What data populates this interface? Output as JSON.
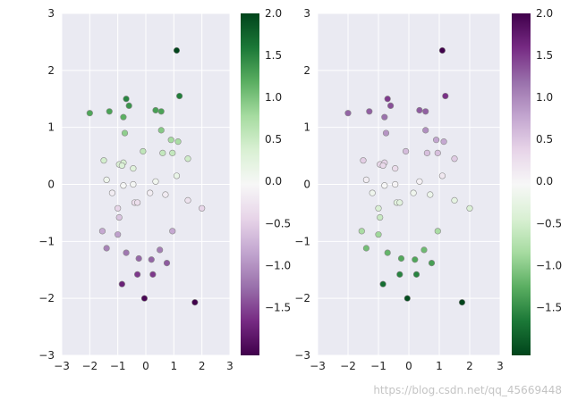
{
  "chart_data": [
    {
      "type": "scatter",
      "title": "",
      "xlabel": "",
      "ylabel": "",
      "xlim": [
        -3,
        3
      ],
      "ylim": [
        -3,
        3
      ],
      "xticks": [
        -3,
        -2,
        -1,
        0,
        1,
        2,
        3
      ],
      "yticks": [
        -3,
        -2,
        -1,
        0,
        1,
        2,
        3
      ],
      "grid": true,
      "colormap": "PRGn",
      "colorbar": {
        "range": [
          -2.07,
          2.0
        ],
        "ticks": [
          -1.5,
          -1.0,
          -0.5,
          0.0,
          0.5,
          1.0,
          1.5,
          2.0
        ],
        "tick_labels": [
          "−1.5",
          "−1.0",
          "−0.5",
          "0.0",
          "0.5",
          "1.0",
          "1.5",
          "2.0"
        ]
      }
    },
    {
      "type": "scatter",
      "title": "",
      "xlabel": "",
      "ylabel": "",
      "xlim": [
        -3,
        3
      ],
      "ylim": [
        -3,
        3
      ],
      "xticks": [
        -3,
        -2,
        -1,
        0,
        1,
        2,
        3
      ],
      "yticks": [
        -3,
        -2,
        -1,
        0,
        1,
        2,
        3
      ],
      "grid": true,
      "colormap": "PRGn_r",
      "colorbar": {
        "range": [
          -2.07,
          2.0
        ],
        "ticks": [
          -1.5,
          -1.0,
          -0.5,
          0.0,
          0.5,
          1.0,
          1.5,
          2.0
        ],
        "tick_labels": [
          "−1.5",
          "−1.0",
          "−0.5",
          "0.0",
          "0.5",
          "1.0",
          "1.5",
          "2.0"
        ]
      }
    }
  ],
  "points": [
    {
      "x": 1.1,
      "y": 2.35
    },
    {
      "x": -2.0,
      "y": 1.25
    },
    {
      "x": -1.3,
      "y": 1.28
    },
    {
      "x": -0.7,
      "y": 1.5
    },
    {
      "x": -0.6,
      "y": 1.38
    },
    {
      "x": -0.8,
      "y": 1.18
    },
    {
      "x": 0.35,
      "y": 1.3
    },
    {
      "x": 0.55,
      "y": 1.28
    },
    {
      "x": 1.2,
      "y": 1.55
    },
    {
      "x": 0.55,
      "y": 0.95
    },
    {
      "x": -0.75,
      "y": 0.9
    },
    {
      "x": 0.9,
      "y": 0.78
    },
    {
      "x": 1.15,
      "y": 0.75
    },
    {
      "x": -0.1,
      "y": 0.58
    },
    {
      "x": 0.6,
      "y": 0.55
    },
    {
      "x": 0.95,
      "y": 0.55
    },
    {
      "x": 1.5,
      "y": 0.45
    },
    {
      "x": -1.5,
      "y": 0.42
    },
    {
      "x": -0.8,
      "y": 0.38
    },
    {
      "x": -0.95,
      "y": 0.35
    },
    {
      "x": -0.85,
      "y": 0.33
    },
    {
      "x": -0.45,
      "y": 0.28
    },
    {
      "x": 0.35,
      "y": 0.05
    },
    {
      "x": 1.1,
      "y": 0.15
    },
    {
      "x": -1.4,
      "y": 0.08
    },
    {
      "x": -0.8,
      "y": -0.02
    },
    {
      "x": -0.45,
      "y": 0.0
    },
    {
      "x": -1.2,
      "y": -0.15
    },
    {
      "x": 0.15,
      "y": -0.15
    },
    {
      "x": 0.7,
      "y": -0.18
    },
    {
      "x": -0.4,
      "y": -0.32
    },
    {
      "x": -0.3,
      "y": -0.32
    },
    {
      "x": 1.5,
      "y": -0.28
    },
    {
      "x": 2.0,
      "y": -0.42
    },
    {
      "x": -1.0,
      "y": -0.42
    },
    {
      "x": -0.95,
      "y": -0.58
    },
    {
      "x": -1.55,
      "y": -0.82
    },
    {
      "x": -1.0,
      "y": -0.88
    },
    {
      "x": 0.95,
      "y": -0.82
    },
    {
      "x": -1.4,
      "y": -1.12
    },
    {
      "x": 0.5,
      "y": -1.15
    },
    {
      "x": -0.7,
      "y": -1.2
    },
    {
      "x": 0.2,
      "y": -1.32
    },
    {
      "x": -0.25,
      "y": -1.3
    },
    {
      "x": 0.75,
      "y": -1.38
    },
    {
      "x": 0.25,
      "y": -1.58
    },
    {
      "x": -0.3,
      "y": -1.58
    },
    {
      "x": -0.85,
      "y": -1.75
    },
    {
      "x": -0.05,
      "y": -2.0
    },
    {
      "x": 1.75,
      "y": -2.07
    }
  ]
}
